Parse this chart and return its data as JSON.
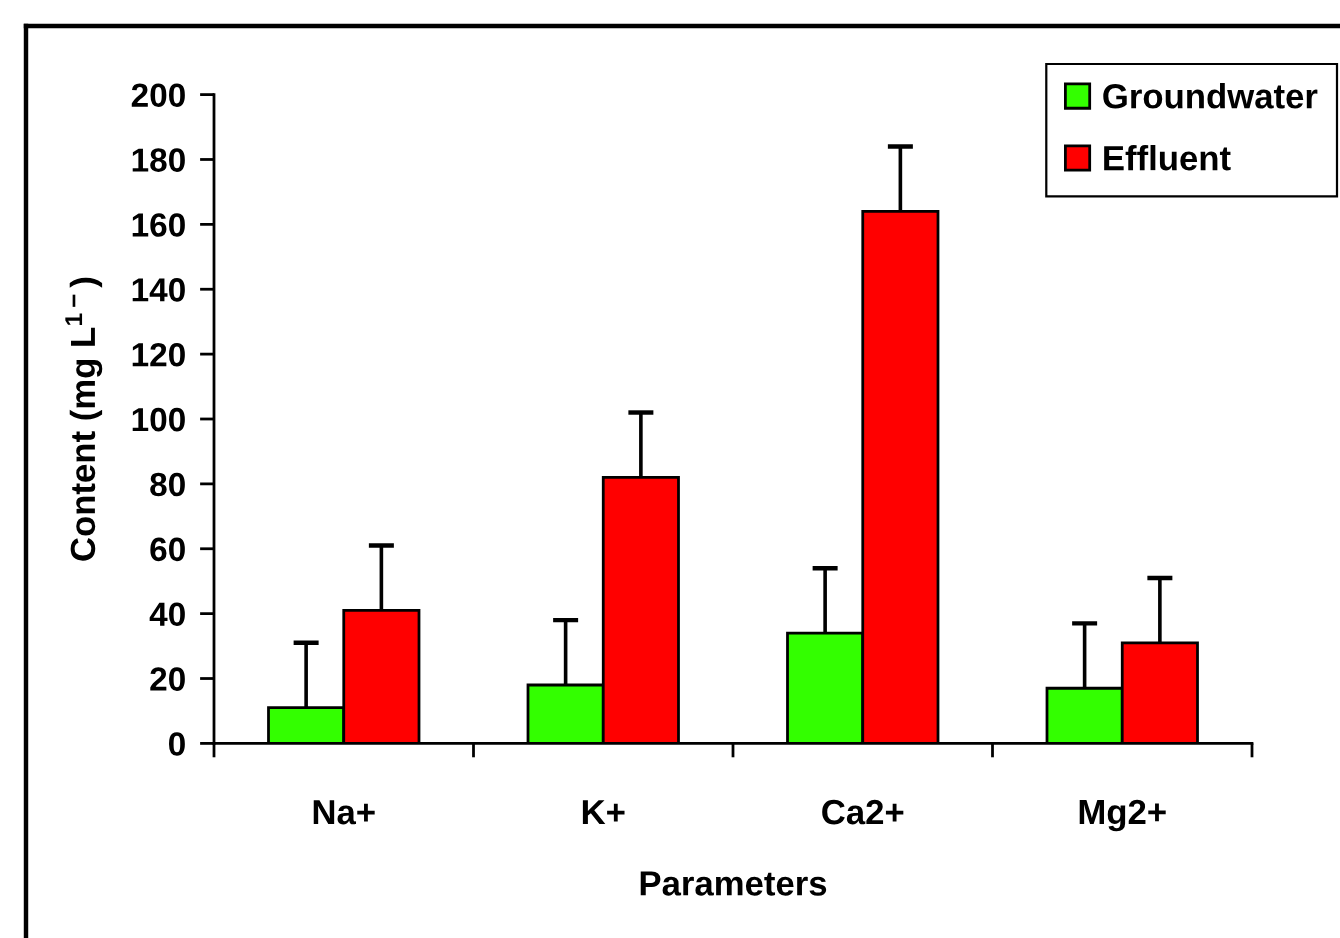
{
  "chart_data": {
    "type": "bar",
    "xlabel": "Parameters",
    "ylabel": "Content (mg L$^{1−}$)",
    "categories": [
      "Na+",
      "K+",
      "Ca2+",
      "Mg2+"
    ],
    "series": [
      {
        "name": "Groundwater",
        "color": "#33ff00",
        "values": [
          11,
          18,
          34,
          17
        ],
        "errors": [
          [
            11,
            31
          ],
          [
            18,
            38
          ],
          [
            34,
            54
          ],
          [
            17,
            37
          ]
        ]
      },
      {
        "name": "Effluent",
        "color": "#ff0000",
        "values": [
          41,
          82,
          164,
          31
        ],
        "errors": [
          [
            41,
            61
          ],
          [
            82,
            102
          ],
          [
            164,
            184
          ],
          [
            31,
            51
          ]
        ]
      }
    ],
    "ylim": [
      0,
      200
    ],
    "yticks": [
      0,
      20,
      40,
      60,
      80,
      100,
      120,
      140,
      160,
      180,
      200
    ],
    "legend": "top right"
  }
}
